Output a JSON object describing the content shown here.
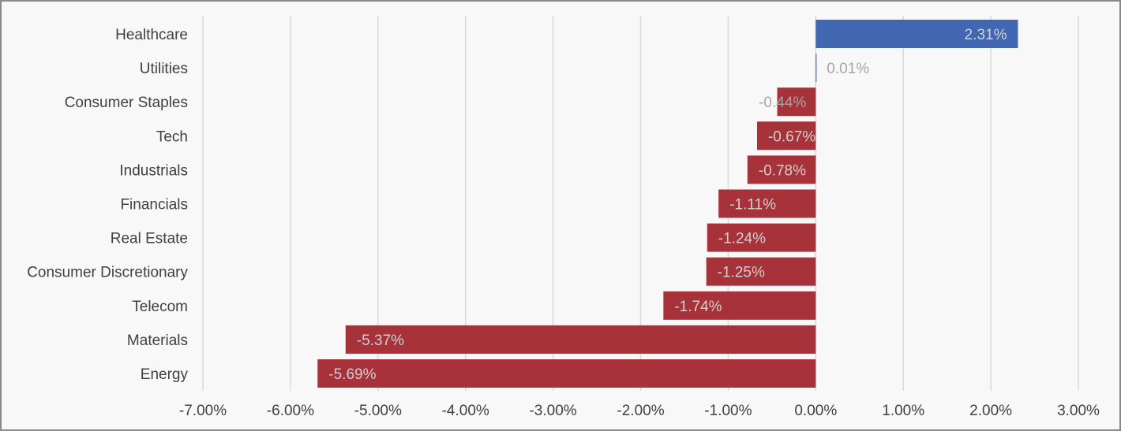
{
  "chart_data": {
    "type": "bar",
    "orientation": "horizontal",
    "title": "",
    "xlabel": "",
    "ylabel": "",
    "categories": [
      "Healthcare",
      "Utilities",
      "Consumer Staples",
      "Tech",
      "Industrials",
      "Financials",
      "Real Estate",
      "Consumer Discretionary",
      "Telecom",
      "Materials",
      "Energy"
    ],
    "values": [
      2.31,
      0.01,
      -0.44,
      -0.67,
      -0.78,
      -1.11,
      -1.24,
      -1.25,
      -1.74,
      -5.37,
      -5.69
    ],
    "data_labels": [
      "2.31%",
      "0.01%",
      "-0.44%",
      "-0.67%",
      "-0.78%",
      "-1.11%",
      "-1.24%",
      "-1.25%",
      "-1.74%",
      "-5.37%",
      "-5.69%"
    ],
    "xlim": [
      -7,
      3
    ],
    "x_ticks": [
      -7,
      -6,
      -5,
      -4,
      -3,
      -2,
      -1,
      0,
      1,
      2,
      3
    ],
    "x_tick_labels": [
      "-7.00%",
      "-6.00%",
      "-5.00%",
      "-4.00%",
      "-3.00%",
      "-2.00%",
      "-1.00%",
      "0.00%",
      "1.00%",
      "2.00%",
      "3.00%"
    ],
    "grid": "vertical",
    "legend": "none",
    "colors": {
      "positive": "#4267b2",
      "negative": "#a8323a",
      "gridline": "#d9d9d9",
      "label_light": "#d0d0d0",
      "label_muted": "#a6a6a6"
    }
  }
}
